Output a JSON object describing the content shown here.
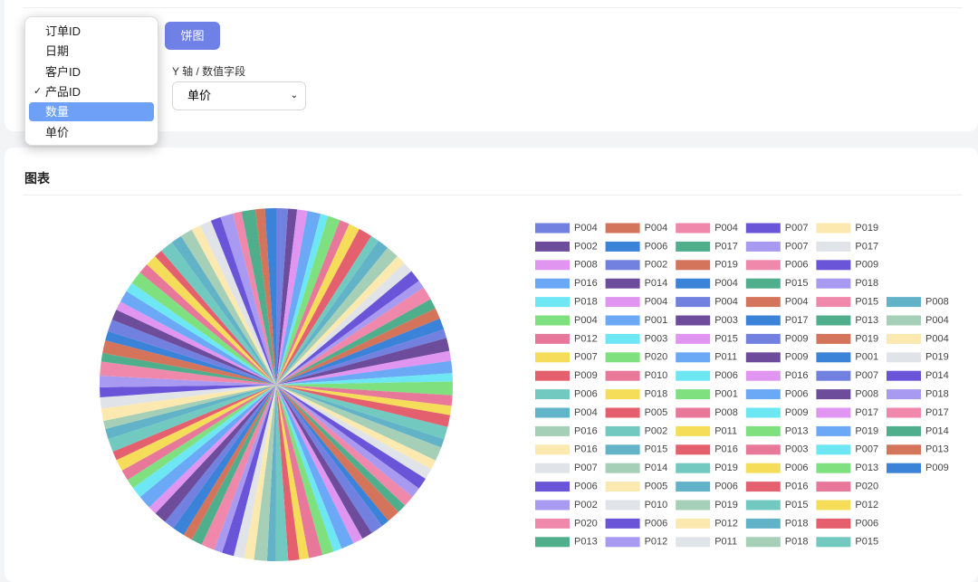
{
  "controls": {
    "chart_type_button": "饼图",
    "y_field_label": "Y 轴 / 数值字段",
    "y_field_selected": "单价",
    "x_field_options": [
      "订单ID",
      "日期",
      "客户ID",
      "产品ID",
      "数量",
      "单价"
    ],
    "checked_index": 3,
    "highlighted_index": 4
  },
  "chart_card": {
    "title": "图表"
  },
  "chart_data": {
    "type": "pie",
    "categories": [
      "P004",
      "P002",
      "P008",
      "P016",
      "P018",
      "P004",
      "P012",
      "P007",
      "P009",
      "P006",
      "P004",
      "P016",
      "P016",
      "P007",
      "P006",
      "P002",
      "P020",
      "P013",
      "P004",
      "P006",
      "P002",
      "P014",
      "P004",
      "P001",
      "P003",
      "P020",
      "P010",
      "P018",
      "P005",
      "P002",
      "P015",
      "P014",
      "P005",
      "P010",
      "P006",
      "P012",
      "P004",
      "P017",
      "P019",
      "P004",
      "P004",
      "P003",
      "P015",
      "P011",
      "P006",
      "P001",
      "P008",
      "P011",
      "P016",
      "P019",
      "P006",
      "P019",
      "P012",
      "P011",
      "P007",
      "P007",
      "P006",
      "P015",
      "P004",
      "P017",
      "P009",
      "P009",
      "P016",
      "P006",
      "P009",
      "P013",
      "P003",
      "P006",
      "P016",
      "P015",
      "P018",
      "P018",
      "P019",
      "P017",
      "P009",
      "P018",
      "P015",
      "P013",
      "P019",
      "P001",
      "P007",
      "P008",
      "P017",
      "P019",
      "P007",
      "P013",
      "P020",
      "P012",
      "P006",
      "P015",
      "P008",
      "P004",
      "P004",
      "P019",
      "P014",
      "P018",
      "P017",
      "P014",
      "P013",
      "P009"
    ],
    "values": [
      62,
      48,
      55,
      70,
      41,
      66,
      52,
      59,
      73,
      45,
      60,
      68,
      50,
      57,
      64,
      43,
      71,
      54,
      58,
      61,
      47,
      69,
      53,
      65,
      44,
      72,
      56,
      49,
      63,
      67,
      46,
      74,
      51,
      58,
      62,
      55,
      60,
      48,
      70,
      42,
      66,
      57,
      53,
      68,
      45,
      61,
      73,
      50,
      59,
      64,
      47,
      69,
      52,
      56,
      63,
      44,
      71,
      58,
      49,
      65,
      54,
      67,
      46,
      72,
      60,
      51,
      57,
      62,
      48,
      70,
      55,
      43,
      66,
      59,
      53,
      61,
      74,
      45,
      68,
      50,
      64,
      57,
      47,
      63,
      52,
      69,
      56,
      60,
      44,
      71,
      58,
      65,
      49,
      62,
      54,
      67,
      46,
      73,
      51,
      59
    ],
    "colors": [
      "#7280e0",
      "#6e4c9c",
      "#e096f0",
      "#6ba8f5",
      "#6ee7f5",
      "#7ee07e",
      "#e8789a",
      "#f5dd5a",
      "#e4606e",
      "#72c9c0",
      "#62b3c8",
      "#a5cfb6",
      "#fce9b0",
      "#e0e4e8",
      "#6a55d9",
      "#a79af0",
      "#ef88ab",
      "#4faf8d",
      "#d4745a",
      "#3b82d9"
    ]
  }
}
